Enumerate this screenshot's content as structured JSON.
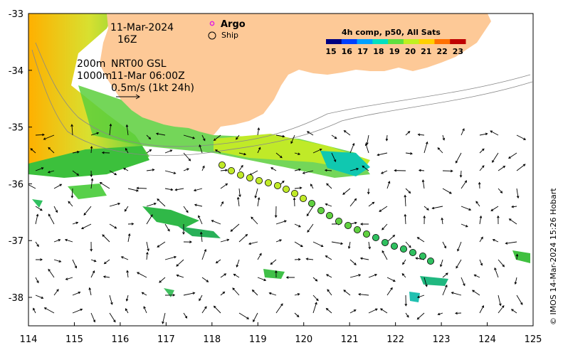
{
  "map": {
    "date": "11-Mar-2024",
    "hour": "16Z",
    "depth_line1": "200m",
    "depth_line2": "1000m",
    "source_line1": "NRT00 GSL",
    "source_line2": "11-Mar 06:00Z",
    "scale_label": "0.5m/s (1kt 24h)",
    "legend": {
      "argo_label": "Argo",
      "ship_label": "Ship",
      "colorbar_title": "4h comp, p50, All Sats",
      "colorbar_ticks": [
        "15",
        "16",
        "17",
        "18",
        "19",
        "20",
        "21",
        "22",
        "23"
      ],
      "colorbar_colors": [
        "#000080",
        "#0040ff",
        "#00a0ff",
        "#00e0c0",
        "#60e040",
        "#c0f020",
        "#ffd000",
        "#ff7000",
        "#c00000"
      ]
    },
    "credit": "© IMOS 14-Mar-2024 15:26 Hobart",
    "x_ticks": [
      "114",
      "115",
      "116",
      "117",
      "118",
      "119",
      "120",
      "121",
      "122",
      "123",
      "124",
      "125"
    ],
    "y_ticks": [
      "-33",
      "-34",
      "-35",
      "-36",
      "-37",
      "-38"
    ],
    "colors": {
      "land": "#fdc997",
      "coast": "#888888",
      "marker_argo": "#e020e0"
    }
  }
}
